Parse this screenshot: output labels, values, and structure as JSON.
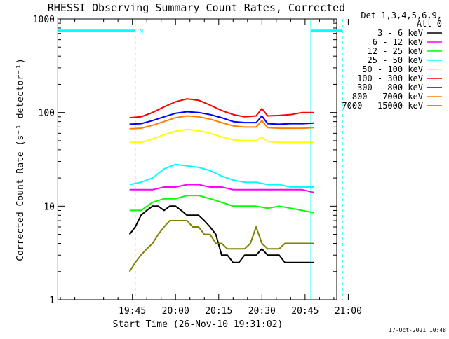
{
  "chart_data": {
    "type": "line",
    "title": "RHESSI Observing Summary Count Rates, Corrected",
    "xlabel": "Start Time (26-Nov-10 19:31:02)",
    "ylabel": "Corrected Count Rate (s⁻¹ detector⁻¹)",
    "y_scale": "log",
    "ylim": [
      1,
      1000
    ],
    "xlim_minutes": [
      19.0,
      116.0
    ],
    "x_start": "19:31:02",
    "x_ticks": [
      {
        "minute": 45,
        "label": "19:45"
      },
      {
        "minute": 60,
        "label": "20:00"
      },
      {
        "minute": 75,
        "label": "20:15"
      },
      {
        "minute": 90,
        "label": "20:30"
      },
      {
        "minute": 105,
        "label": "20:45"
      },
      {
        "minute": 120,
        "label": "21:00"
      }
    ],
    "y_ticks": [
      {
        "value": 1,
        "label": "1"
      },
      {
        "value": 10,
        "label": "10"
      },
      {
        "value": 100,
        "label": "100"
      },
      {
        "value": 1000,
        "label": "1000"
      }
    ],
    "legend": {
      "header": [
        "Det 1,3,4,5,6,9,",
        "Att 0"
      ],
      "placement": "right"
    },
    "series": [
      {
        "name": "3 - 6 keV",
        "color": "#000000",
        "x": [
          44,
          46,
          48,
          50,
          52,
          54,
          56,
          58,
          60,
          62,
          64,
          66,
          68,
          70,
          72,
          74,
          76,
          78,
          80,
          82,
          84,
          86,
          88,
          90,
          92,
          94,
          96,
          98,
          100,
          102,
          104,
          106,
          108
        ],
        "y": [
          5,
          6,
          8,
          9,
          10,
          10,
          9,
          10,
          10,
          9,
          8,
          8,
          8,
          7,
          6,
          5,
          3,
          3,
          2.5,
          2.5,
          3,
          3,
          3,
          3.5,
          3,
          3,
          3,
          2.5,
          2.5,
          2.5,
          2.5,
          2.5,
          2.5
        ]
      },
      {
        "name": "6 - 12 keV",
        "color": "#ff00ff",
        "x": [
          44,
          48,
          52,
          56,
          60,
          64,
          68,
          72,
          76,
          80,
          84,
          88,
          92,
          96,
          100,
          104,
          108
        ],
        "y": [
          15,
          15,
          15,
          16,
          16,
          17,
          17,
          16,
          16,
          15,
          15,
          15,
          15,
          15,
          15,
          15,
          14
        ]
      },
      {
        "name": "12 - 25 keV",
        "color": "#00ff00",
        "x": [
          44,
          48,
          52,
          56,
          60,
          64,
          68,
          72,
          76,
          80,
          84,
          88,
          92,
          96,
          100,
          104,
          108
        ],
        "y": [
          9,
          9,
          11,
          12,
          12,
          13,
          13,
          12,
          11,
          10,
          10,
          10,
          9.5,
          10,
          9.5,
          9,
          8.5
        ]
      },
      {
        "name": "25 - 50 keV",
        "color": "#00ffff",
        "x": [
          44,
          48,
          52,
          56,
          60,
          64,
          68,
          72,
          76,
          80,
          84,
          88,
          92,
          96,
          100,
          104,
          108
        ],
        "y": [
          17,
          18,
          20,
          25,
          28,
          27,
          26,
          24,
          21,
          19,
          18,
          18,
          17,
          17,
          16,
          16,
          16
        ]
      },
      {
        "name": "50 - 100 keV",
        "color": "#ffff00",
        "x": [
          44,
          48,
          52,
          56,
          60,
          64,
          68,
          72,
          76,
          80,
          84,
          88,
          90,
          92,
          96,
          100,
          104,
          108
        ],
        "y": [
          48,
          48,
          52,
          58,
          63,
          66,
          64,
          60,
          55,
          51,
          50,
          50,
          55,
          49,
          48,
          48,
          48,
          48
        ]
      },
      {
        "name": "100 - 300 keV",
        "color": "#ff0000",
        "x": [
          44,
          48,
          52,
          56,
          60,
          64,
          68,
          72,
          76,
          80,
          84,
          88,
          90,
          92,
          96,
          100,
          104,
          108
        ],
        "y": [
          88,
          90,
          100,
          115,
          130,
          140,
          135,
          120,
          105,
          95,
          90,
          92,
          110,
          92,
          93,
          95,
          100,
          100
        ]
      },
      {
        "name": "300 - 800 keV",
        "color": "#0000ff",
        "x": [
          44,
          48,
          52,
          56,
          60,
          64,
          68,
          72,
          76,
          80,
          84,
          88,
          90,
          92,
          96,
          100,
          104,
          108
        ],
        "y": [
          75,
          76,
          82,
          90,
          98,
          102,
          100,
          95,
          88,
          80,
          78,
          78,
          92,
          76,
          75,
          76,
          76,
          77
        ]
      },
      {
        "name": "800 - 7000 keV",
        "color": "#ff8000",
        "x": [
          44,
          48,
          52,
          56,
          60,
          64,
          68,
          72,
          76,
          80,
          84,
          88,
          90,
          92,
          96,
          100,
          104,
          108
        ],
        "y": [
          67,
          68,
          73,
          80,
          88,
          92,
          90,
          85,
          78,
          72,
          70,
          70,
          82,
          69,
          68,
          68,
          68,
          69
        ]
      },
      {
        "name": "7000 - 15000 keV",
        "color": "#808000",
        "x": [
          44,
          46,
          48,
          50,
          52,
          54,
          56,
          58,
          60,
          62,
          64,
          66,
          68,
          70,
          72,
          74,
          76,
          78,
          80,
          82,
          84,
          86,
          88,
          90,
          92,
          94,
          96,
          98,
          100,
          102,
          104,
          106,
          108
        ],
        "y": [
          2,
          2.5,
          3,
          3.5,
          4,
          5,
          6,
          7,
          7,
          7,
          7,
          6,
          6,
          5,
          5,
          4,
          4,
          3.5,
          3.5,
          3.5,
          3.5,
          4,
          6,
          4,
          3.5,
          3.5,
          3.5,
          4,
          4,
          4,
          4,
          4,
          4
        ]
      }
    ],
    "overlays": {
      "color": "#00ffff",
      "solid_bars": [
        {
          "from_minute": 19,
          "to_minute": 46,
          "y": 750
        },
        {
          "from_minute": 107,
          "to_minute": 118,
          "y": 750
        }
      ],
      "vertical_solid": [
        19,
        107
      ],
      "vertical_dashed": [
        46,
        118
      ],
      "labels": [
        {
          "minute": 46,
          "y": 750,
          "text": "N"
        }
      ]
    }
  },
  "footer": {
    "date": "17-Oct-2021 10:48"
  }
}
